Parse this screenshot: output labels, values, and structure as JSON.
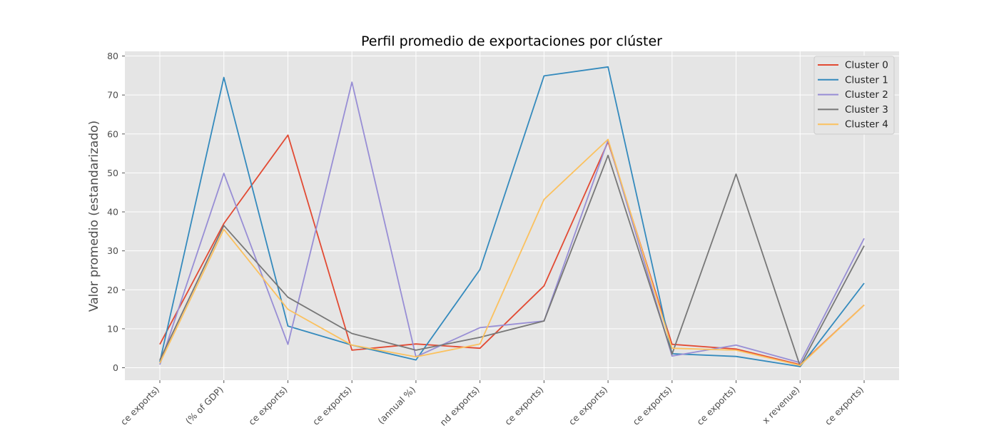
{
  "chart_data": {
    "type": "line",
    "title": "Perfil promedio de exportaciones por clúster",
    "xlabel": "",
    "ylabel": "Valor promedio (estandarizado)",
    "categories": [
      "ce exports)",
      "(% of GDP)",
      "ce exports)",
      "ce exports)",
      "(annual %)",
      "nd exports)",
      "ce exports)",
      "ce exports)",
      "ce exports)",
      "ce exports)",
      "x revenue)",
      "ce exports)"
    ],
    "ylim": [
      -3.2,
      81.2
    ],
    "yticks": [
      0,
      10,
      20,
      30,
      40,
      50,
      60,
      70,
      80
    ],
    "grid": true,
    "legend_position": "top-right",
    "series": [
      {
        "name": "Cluster 0",
        "color": "#E24A33",
        "values": [
          6.0,
          37.0,
          59.7,
          4.5,
          6.1,
          5.0,
          21.0,
          58.0,
          6.0,
          4.8,
          0.8,
          16.1
        ]
      },
      {
        "name": "Cluster 1",
        "color": "#348ABD",
        "values": [
          1.5,
          74.5,
          10.7,
          5.8,
          2.0,
          25.2,
          74.9,
          77.2,
          3.6,
          2.9,
          0.3,
          21.7
        ]
      },
      {
        "name": "Cluster 2",
        "color": "#988ED5",
        "values": [
          0.8,
          49.9,
          6.0,
          73.3,
          2.8,
          10.3,
          12.0,
          58.4,
          3.0,
          5.8,
          1.3,
          33.2
        ]
      },
      {
        "name": "Cluster 3",
        "color": "#777777",
        "values": [
          2.0,
          36.5,
          18.1,
          8.8,
          4.5,
          7.8,
          12.0,
          54.5,
          3.5,
          49.7,
          0.4,
          31.3
        ]
      },
      {
        "name": "Cluster 4",
        "color": "#FBC15E",
        "values": [
          1.2,
          35.5,
          15.0,
          5.8,
          2.8,
          6.1,
          43.2,
          58.6,
          5.0,
          4.5,
          0.6,
          16.1
        ]
      }
    ]
  }
}
